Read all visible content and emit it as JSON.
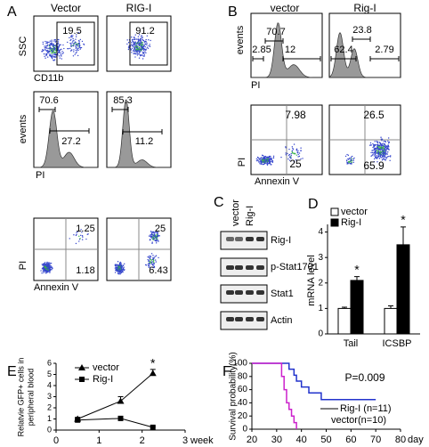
{
  "panel_a": {
    "label": "A",
    "columns": [
      "Vector",
      "RIG-I"
    ],
    "row1": {
      "y_axis": "SSC",
      "x_axis": "CD11b",
      "values": [
        19.5,
        91.2
      ]
    },
    "row2": {
      "y_axis": "events",
      "x_axis": "PI",
      "values": [
        [
          70.6,
          27.2
        ],
        [
          85.3,
          11.2
        ]
      ]
    },
    "row3": {
      "y_axis": "PI",
      "x_axis": "Annexin V",
      "values": [
        [
          1.25,
          1.18
        ],
        [
          25,
          6.43
        ]
      ]
    }
  },
  "panel_b": {
    "label": "B",
    "columns": [
      "vector",
      "Rig-I"
    ],
    "row1": {
      "y_axis": "events",
      "x_axis": "PI",
      "values": [
        [
          70.7,
          2.85,
          12
        ],
        [
          23.8,
          62.4,
          2.79
        ]
      ]
    },
    "row2": {
      "y_axis": "PI",
      "x_axis": "Annexin V",
      "values": [
        [
          7.98,
          25
        ],
        [
          26.5,
          65.9
        ]
      ]
    }
  },
  "panel_c": {
    "label": "C",
    "columns": [
      "vector",
      "Rig-I"
    ],
    "rows": [
      "Rig-I",
      "p-Stat1701",
      "Stat1",
      "Actin"
    ]
  },
  "panel_d": {
    "label": "D",
    "chart_data": {
      "type": "bar",
      "ylabel": "mRNA level",
      "categories": [
        "Tail",
        "ICSBP"
      ],
      "series": [
        {
          "name": "vector",
          "color": "#ffffff",
          "values": [
            1,
            1
          ],
          "errors": [
            0.05,
            0.1
          ]
        },
        {
          "name": "Rig-I",
          "color": "#000000",
          "values": [
            2.1,
            3.5
          ],
          "errors": [
            0.15,
            0.7
          ]
        }
      ],
      "ylim": [
        0,
        4.3
      ],
      "yticks": [
        0,
        1,
        2,
        3,
        4
      ],
      "annotations": [
        "*",
        "*"
      ]
    }
  },
  "panel_e": {
    "label": "E",
    "chart_data": {
      "type": "line",
      "ylabel": [
        "Relatvie GFP+ cells in",
        "peripheral blood"
      ],
      "xlabel": "week",
      "x": [
        0.5,
        1.5,
        2.25
      ],
      "series": [
        {
          "name": "vector",
          "color": "#000000",
          "marker": "triangle",
          "values": [
            1,
            2.6,
            5.1
          ],
          "errors": [
            0.15,
            0.4,
            0.35
          ]
        },
        {
          "name": "Rig-I",
          "color": "#000000",
          "marker": "square",
          "values": [
            0.9,
            1.05,
            0.25
          ],
          "errors": [
            0.1,
            0.05,
            0.05
          ]
        }
      ],
      "xlim": [
        0,
        3
      ],
      "xticks": [
        0,
        1,
        2,
        3
      ],
      "ylim": [
        0,
        6
      ],
      "yticks": [
        0,
        1,
        2,
        3,
        4,
        5,
        6
      ],
      "annotation": "*"
    }
  },
  "panel_f": {
    "label": "F",
    "chart_data": {
      "type": "step",
      "ylabel": "Survival probability(%)",
      "xlabel": "day",
      "annotation": "P=0.009",
      "series": [
        {
          "name": "Rig-I (n=11)",
          "color": "#2233cc",
          "x": [
            20,
            35,
            37,
            38,
            40,
            43,
            48,
            70
          ],
          "values": [
            100,
            91,
            82,
            73,
            64,
            55,
            45,
            45
          ]
        },
        {
          "name": "vector(n=10)",
          "color": "#cc22cc",
          "x": [
            20,
            31,
            32,
            33,
            34,
            35,
            36,
            37,
            38
          ],
          "values": [
            100,
            100,
            80,
            60,
            40,
            30,
            20,
            10,
            0
          ]
        }
      ],
      "xlim": [
        20,
        80
      ],
      "xticks": [
        20,
        30,
        40,
        50,
        60,
        70,
        80
      ],
      "ylim": [
        0,
        100
      ],
      "yticks": [
        0,
        20,
        40,
        60,
        80,
        100
      ]
    }
  }
}
